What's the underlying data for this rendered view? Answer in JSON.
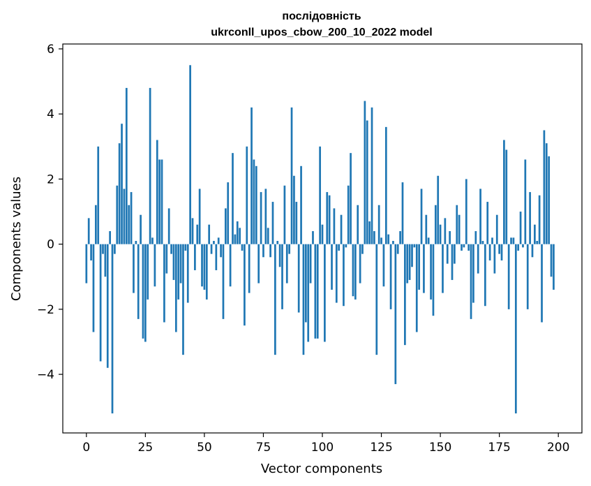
{
  "chart_data": {
    "type": "bar",
    "title_lines": [
      "послідовність",
      "ukrconll_upos_cbow_200_10_2022 model"
    ],
    "xlabel": "Vector components",
    "ylabel": "Components values",
    "xlim": [
      -10,
      210
    ],
    "ylim": [
      -5.8,
      6.15
    ],
    "xticks": [
      0,
      25,
      50,
      75,
      100,
      125,
      150,
      175,
      200
    ],
    "yticks": [
      -4,
      -2,
      0,
      2,
      4,
      6
    ],
    "ytick_labels": [
      "−4",
      "−2",
      "0",
      "2",
      "4",
      "6"
    ],
    "grid": false,
    "bar_color": "#1f77b4",
    "x_start": 0,
    "values": [
      -1.2,
      0.8,
      -0.5,
      -2.7,
      1.2,
      3.0,
      -3.6,
      -0.3,
      -1.0,
      -3.8,
      0.4,
      -5.2,
      -0.3,
      1.8,
      3.1,
      3.7,
      1.7,
      4.8,
      1.2,
      1.6,
      -1.5,
      0.1,
      -2.3,
      0.9,
      -2.9,
      -3.0,
      -1.7,
      4.8,
      0.2,
      -1.3,
      3.2,
      2.6,
      2.6,
      -2.4,
      -0.9,
      1.1,
      -0.3,
      -1.1,
      -2.7,
      -1.7,
      -1.2,
      -3.4,
      -0.2,
      -1.8,
      5.5,
      0.8,
      -0.8,
      0.6,
      1.7,
      -1.3,
      -1.4,
      -1.7,
      0.6,
      -0.3,
      0.1,
      -0.8,
      0.2,
      -0.4,
      -2.3,
      1.1,
      1.9,
      -1.3,
      2.8,
      0.3,
      0.7,
      0.5,
      -0.2,
      -2.5,
      3.0,
      -1.5,
      4.2,
      2.6,
      2.4,
      -1.2,
      1.6,
      -0.4,
      1.7,
      0.5,
      -0.4,
      1.3,
      -3.4,
      0.1,
      -0.7,
      -2.0,
      1.8,
      -1.2,
      -0.3,
      4.2,
      2.1,
      1.3,
      -2.1,
      2.4,
      -3.4,
      -2.4,
      -3.0,
      -1.2,
      0.4,
      -2.9,
      -2.9,
      3.0,
      0.6,
      -3.0,
      1.6,
      1.5,
      -1.4,
      1.1,
      -1.8,
      -0.2,
      0.9,
      -1.9,
      -0.1,
      1.8,
      2.8,
      -1.6,
      -1.7,
      1.2,
      -1.2,
      -0.3,
      4.4,
      3.8,
      0.7,
      4.2,
      0.4,
      -3.4,
      1.2,
      0.2,
      -1.3,
      3.6,
      0.3,
      -2.0,
      0.1,
      -4.3,
      -0.3,
      0.4,
      1.9,
      -3.1,
      -1.2,
      -1.1,
      -0.7,
      -0.1,
      -2.7,
      -1.4,
      1.7,
      -1.5,
      0.9,
      0.2,
      -1.7,
      -2.2,
      1.2,
      2.1,
      0.6,
      -1.5,
      0.8,
      -0.6,
      0.4,
      -1.1,
      -0.6,
      1.2,
      0.9,
      -0.2,
      -0.1,
      2.0,
      -0.2,
      -2.3,
      -1.8,
      0.4,
      -0.9,
      1.7,
      0.1,
      -1.9,
      1.3,
      -0.5,
      0.2,
      -0.9,
      0.9,
      -0.3,
      -0.5,
      3.2,
      2.9,
      -2.0,
      0.2,
      0.2,
      -5.2,
      -0.2,
      1.0,
      -0.1,
      2.6,
      -2.0,
      1.6,
      -0.4,
      0.6,
      0.1,
      1.5,
      -2.4,
      3.5,
      3.1,
      2.7,
      -1.0,
      -1.4
    ]
  }
}
